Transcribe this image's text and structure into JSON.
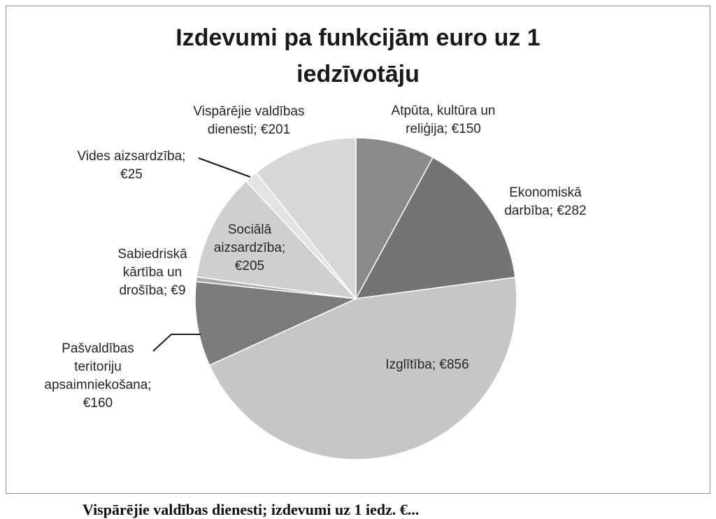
{
  "chart_data": {
    "type": "pie",
    "title_lines": [
      "Izdevumi pa funkcijām euro uz 1",
      "iedzīvotāju"
    ],
    "slices": [
      {
        "name": "Atpūta, kultūra un reliģija",
        "value": 150,
        "color": "#8a8a8a",
        "label_lines": [
          "Atpūta, kultūra un",
          "reliģija; €150"
        ]
      },
      {
        "name": "Ekonomiskā darbība",
        "value": 282,
        "color": "#747474",
        "label_lines": [
          "Ekonomiskā",
          "darbība; €282"
        ]
      },
      {
        "name": "Izglītība",
        "value": 856,
        "color": "#c6c6c6",
        "label_lines": [
          "Izglītība; €856"
        ]
      },
      {
        "name": "Pašvaldības teritoriju apsaimniekošana",
        "value": 160,
        "color": "#7b7b7b",
        "label_lines": [
          "Pašvaldības",
          "teritoriju",
          "apsaimniekošana;",
          "€160"
        ]
      },
      {
        "name": "Sabiedriskā kārtība un drošība",
        "value": 9,
        "color": "#a9a9a9",
        "label_lines": [
          "Sabiedriskā",
          "kārtība un",
          "drošība; €9"
        ]
      },
      {
        "name": "Sociālā aizsardzība",
        "value": 205,
        "color": "#cfcfcf",
        "label_lines": [
          "Sociālā",
          "aizsardzība;",
          "€205"
        ]
      },
      {
        "name": "Vides aizsardzība",
        "value": 25,
        "color": "#e3e3e3",
        "label_lines": [
          "Vides aizsardzība;",
          "€25"
        ]
      },
      {
        "name": "Vispārējie valdības dienesti",
        "value": 201,
        "color": "#d7d7d7",
        "label_lines": [
          "Vispārējie valdības",
          "dienesti; €201"
        ]
      }
    ],
    "start_angle_deg": 0,
    "direction": "clockwise",
    "legend": "none"
  },
  "caption": "Vispārējie valdības dienesti; izdevumi uz 1 iedz. €..."
}
